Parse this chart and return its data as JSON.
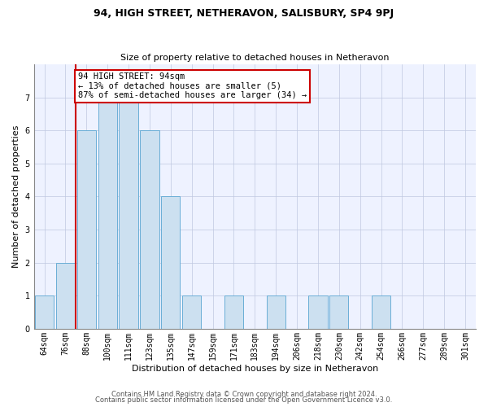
{
  "title": "94, HIGH STREET, NETHERAVON, SALISBURY, SP4 9PJ",
  "subtitle": "Size of property relative to detached houses in Netheravon",
  "xlabel": "Distribution of detached houses by size in Netheravon",
  "ylabel": "Number of detached properties",
  "bins": [
    "64sqm",
    "76sqm",
    "88sqm",
    "100sqm",
    "111sqm",
    "123sqm",
    "135sqm",
    "147sqm",
    "159sqm",
    "171sqm",
    "183sqm",
    "194sqm",
    "206sqm",
    "218sqm",
    "230sqm",
    "242sqm",
    "254sqm",
    "266sqm",
    "277sqm",
    "289sqm",
    "301sqm"
  ],
  "values": [
    1,
    2,
    6,
    7,
    7,
    6,
    4,
    1,
    0,
    1,
    0,
    1,
    0,
    1,
    1,
    0,
    1,
    0,
    0,
    0,
    0
  ],
  "bar_color": "#cce0f0",
  "bar_edge_color": "#6aaed6",
  "vline_x_index": 2,
  "annotation_text": "94 HIGH STREET: 94sqm\n← 13% of detached houses are smaller (5)\n87% of semi-detached houses are larger (34) →",
  "annotation_box_color": "white",
  "annotation_box_edge_color": "#cc0000",
  "vline_color": "#cc0000",
  "ylim": [
    0,
    8
  ],
  "yticks": [
    0,
    1,
    2,
    3,
    4,
    5,
    6,
    7
  ],
  "bg_color": "#eef2ff",
  "grid_color": "#c0c8e0",
  "title_fontsize": 9,
  "subtitle_fontsize": 8,
  "axis_label_fontsize": 8,
  "tick_fontsize": 7,
  "annotation_fontsize": 7.5,
  "footer_fontsize": 6,
  "footer1": "Contains HM Land Registry data © Crown copyright and database right 2024.",
  "footer2": "Contains public sector information licensed under the Open Government Licence v3.0."
}
